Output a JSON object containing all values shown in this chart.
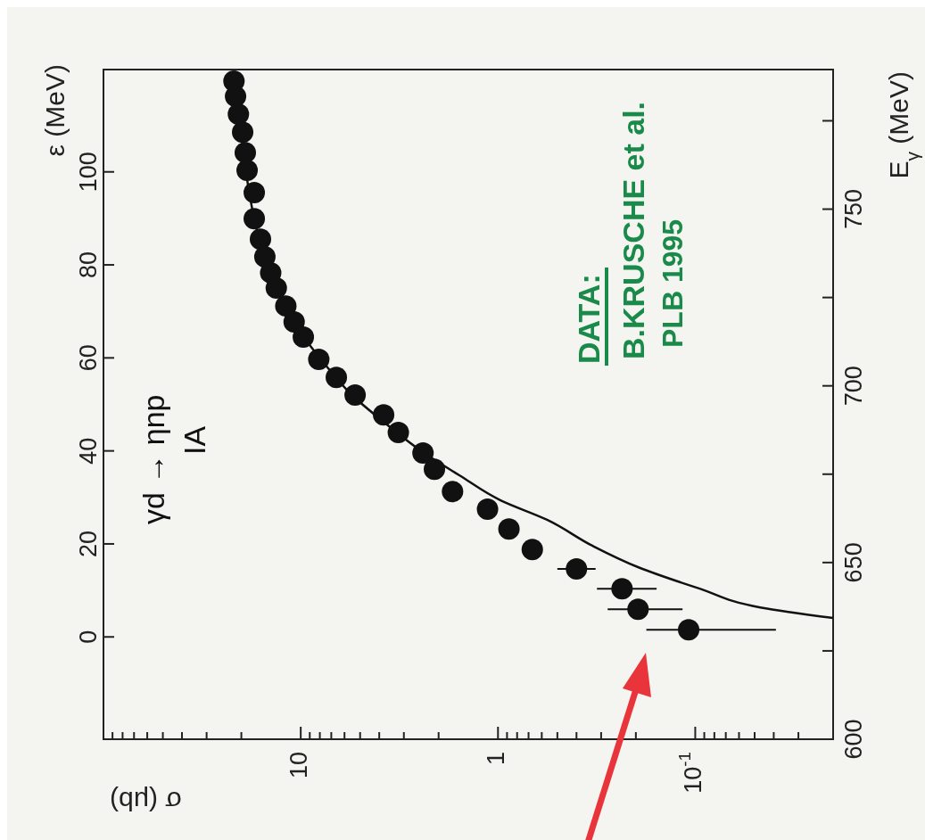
{
  "chart_data": {
    "type": "scatter",
    "xlabel": "σ (μb)",
    "ylabel": "ε (MeV)",
    "y2label": "E$_{γ}$ (MeV)",
    "log": "x",
    "xlim": [
      100,
      0.02
    ],
    "xticks": [
      {
        "value": 90,
        "label": null
      },
      {
        "value": 80,
        "label": null
      },
      {
        "value": 70,
        "label": null
      },
      {
        "value": 60,
        "label": null
      },
      {
        "value": 50,
        "label": null
      },
      {
        "value": 40,
        "label": null
      },
      {
        "value": 30,
        "label": null
      },
      {
        "value": 20,
        "label": null
      },
      10,
      {
        "value": 9,
        "label": null
      },
      {
        "value": 8,
        "label": null
      },
      {
        "value": 7,
        "label": null
      },
      {
        "value": 6,
        "label": null
      },
      {
        "value": 5,
        "label": null
      },
      {
        "value": 4,
        "label": null
      },
      {
        "value": 3,
        "label": null
      },
      {
        "value": 2,
        "label": null
      },
      1,
      {
        "value": 0.9,
        "label": null
      },
      {
        "value": 0.8,
        "label": null
      },
      {
        "value": 0.7,
        "label": null
      },
      {
        "value": 0.6,
        "label": null
      },
      {
        "value": 0.5,
        "label": null
      },
      {
        "value": 0.4,
        "label": null
      },
      {
        "value": 0.3,
        "label": null
      },
      {
        "value": 0.2,
        "label": null
      },
      {
        "value": 0.1,
        "label": "10$^{-1}$"
      },
      {
        "value": 0.09,
        "label": null
      },
      {
        "value": 0.08,
        "label": null
      },
      {
        "value": 0.07,
        "label": null
      },
      {
        "value": 0.06,
        "label": null
      },
      {
        "value": 0.05,
        "label": null
      },
      {
        "value": 0.04,
        "label": null
      },
      {
        "value": 0.03,
        "label": null
      },
      {
        "value": 0.02,
        "label": null
      }
    ],
    "ylim": [
      -22,
      122
    ],
    "yticks": [
      0,
      20,
      40,
      60,
      80,
      100
    ],
    "y2lim": [
      600,
      789.5
    ],
    "y2ticks": [
      600,
      {
        "value": 625,
        "label": null
      },
      650,
      {
        "value": 675,
        "label": null
      },
      700,
      {
        "value": 725,
        "label": null
      },
      750,
      {
        "value": 775,
        "label": null
      }
    ],
    "series": [
      {
        "type": "scatter",
        "marker": "circle",
        "axis": "y2",
        "color": "#111111",
        "x": [
          21.8,
          21.4,
          20.7,
          19.7,
          19.1,
          18.7,
          17.2,
          17.2,
          16.0,
          15.2,
          14.2,
          13.3,
          11.9,
          10.8,
          9.7,
          8.1,
          6.6,
          5.3,
          3.8,
          3.2,
          2.4,
          2.1,
          1.7,
          1.13,
          0.88,
          0.67,
          0.4,
          0.235,
          0.195,
          0.108
        ],
        "values": [
          786.2,
          781.9,
          776.9,
          771.8,
          766.0,
          761.0,
          754.7,
          747.3,
          741.5,
          736.5,
          732.0,
          727.7,
          722.6,
          718.1,
          713.8,
          707.5,
          702.4,
          697.4,
          691.8,
          686.8,
          681.0,
          676.4,
          670.1,
          665.1,
          659.5,
          653.7,
          648.2,
          642.6,
          636.8,
          631.0
        ],
        "xerrors": [
          null,
          null,
          null,
          null,
          null,
          null,
          null,
          null,
          null,
          null,
          null,
          null,
          null,
          null,
          null,
          null,
          null,
          null,
          null,
          null,
          null,
          null,
          null,
          null,
          null,
          null,
          [
            0.32,
            0.5
          ],
          [
            0.157,
            0.315
          ],
          [
            0.116,
            0.278
          ],
          [
            0.039,
            0.177
          ]
        ]
      },
      {
        "type": "line",
        "axis": "y2",
        "color": "#111111",
        "x": [
          0.02,
          0.0468,
          0.0949,
          0.195,
          0.331,
          0.564,
          0.97,
          1.57,
          2.37,
          3.8,
          5.5,
          7.9,
          11.0,
          14.0,
          16.7,
          19.1,
          21.0,
          21.8
        ],
        "values": [
          634.3,
          637.3,
          642.6,
          648.7,
          654.7,
          662.1,
          667.6,
          674.7,
          681.0,
          689.8,
          697.4,
          707.5,
          718.3,
          730.2,
          744.1,
          761.7,
          781.9,
          788.2
        ]
      }
    ],
    "annotations": [
      "γd → ηnp",
      "IA",
      "DATA:",
      "B.KRUSCHE et al.",
      "PLB 1995"
    ]
  }
}
